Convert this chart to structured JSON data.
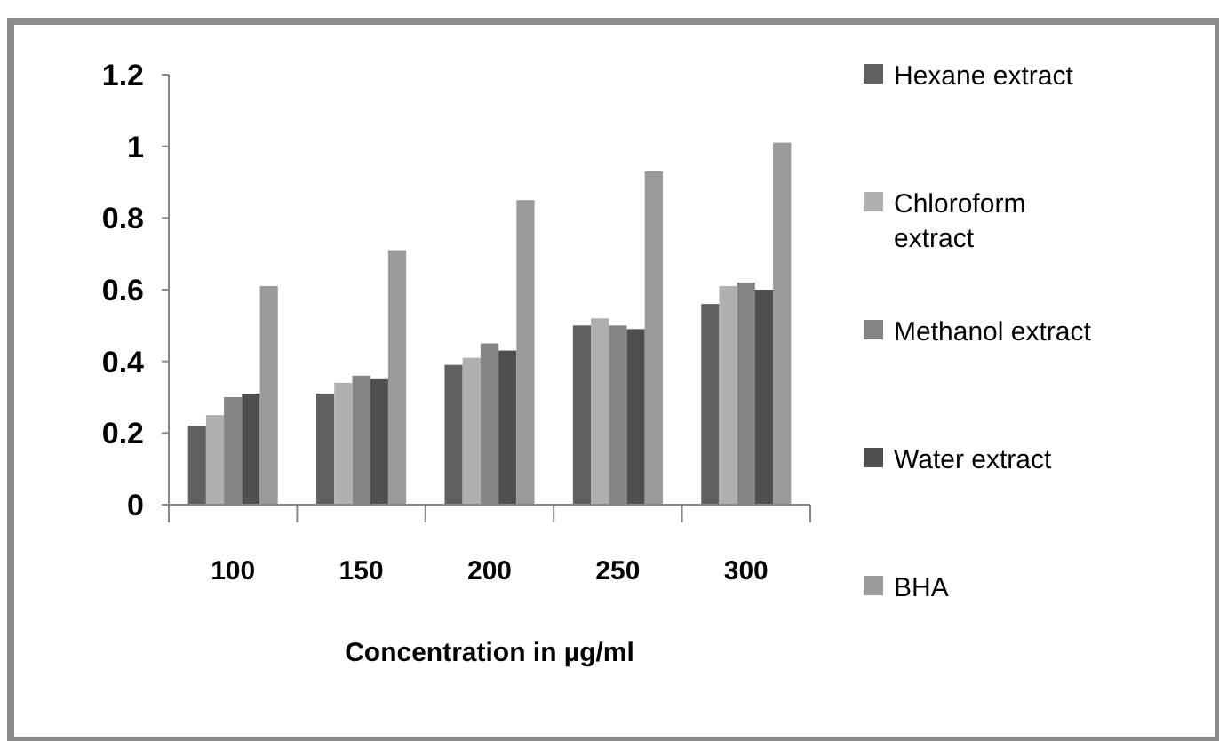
{
  "chart_data": {
    "type": "bar",
    "xlabel": "Concentration in µg/ml",
    "categories": [
      "100",
      "150",
      "200",
      "250",
      "300"
    ],
    "series": [
      {
        "name": "Hexane extract",
        "color": "#606060",
        "values": [
          0.22,
          0.31,
          0.39,
          0.5,
          0.56
        ]
      },
      {
        "name": "Chloroform extract",
        "color": "#b0b0b0",
        "values": [
          0.25,
          0.34,
          0.41,
          0.52,
          0.61
        ]
      },
      {
        "name": "Methanol extract",
        "color": "#848484",
        "values": [
          0.3,
          0.36,
          0.45,
          0.5,
          0.62
        ]
      },
      {
        "name": "Water extract",
        "color": "#4f4f4f",
        "values": [
          0.31,
          0.35,
          0.43,
          0.49,
          0.6
        ]
      },
      {
        "name": "BHA",
        "color": "#9a9a9a",
        "values": [
          0.61,
          0.71,
          0.85,
          0.93,
          1.01
        ]
      }
    ],
    "ylim": [
      0,
      1.2
    ],
    "yticks": [
      0,
      0.2,
      0.4,
      0.6,
      0.8,
      1,
      1.2
    ],
    "grid": false,
    "legend": "right"
  }
}
